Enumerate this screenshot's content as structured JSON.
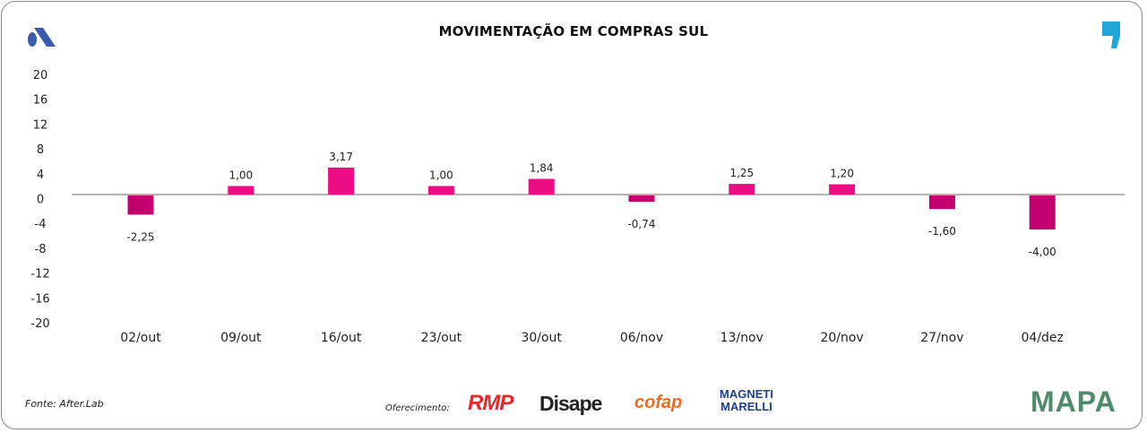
{
  "header": {
    "title": "MOVIMENTAÇÃO EM COMPRAS SUL"
  },
  "footer": {
    "source": "Fonte: After.Lab",
    "offer_label": "Oferecimento:",
    "sponsors": [
      "RMP",
      "Disape",
      "cofap",
      "MAGNETI MARELLI"
    ],
    "brand": "MAPA"
  },
  "colors": {
    "positive": "#ec0c84",
    "negative": "#c2006f",
    "axis": "#888888",
    "logo_a": "#3a5aae",
    "logo_comma": "#1ea7d8"
  },
  "chart_data": {
    "type": "bar",
    "title": "MOVIMENTAÇÃO EM COMPRAS SUL",
    "categories": [
      "02/out",
      "09/out",
      "16/out",
      "23/out",
      "30/out",
      "06/nov",
      "13/nov",
      "20/nov",
      "27/nov",
      "04/dez"
    ],
    "values": [
      -2.25,
      1.0,
      3.17,
      1.0,
      1.84,
      -0.74,
      1.25,
      1.2,
      -1.6,
      -4.0
    ],
    "value_labels": [
      "-2,25",
      "1,00",
      "3,17",
      "1,00",
      "1,84",
      "-0,74",
      "1,25",
      "1,20",
      "-1,60",
      "-4,00"
    ],
    "yticks": [
      "20",
      "16",
      "12",
      "8",
      "4",
      "0",
      "-4",
      "-8",
      "-12",
      "-16",
      "-20"
    ],
    "ylim": [
      -20,
      20
    ],
    "xlabel": "",
    "ylabel": "",
    "grid": false,
    "legend": "none"
  }
}
